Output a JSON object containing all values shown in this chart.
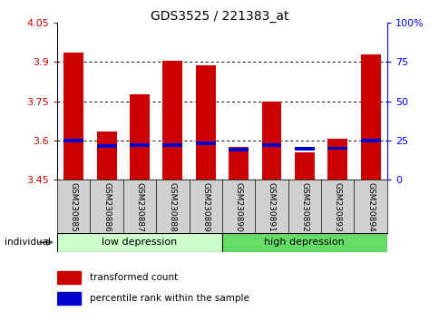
{
  "title": "GDS3525 / 221383_at",
  "categories": [
    "GSM230885",
    "GSM230886",
    "GSM230887",
    "GSM230888",
    "GSM230889",
    "GSM230890",
    "GSM230891",
    "GSM230892",
    "GSM230893",
    "GSM230894"
  ],
  "red_values": [
    3.935,
    3.635,
    3.775,
    3.905,
    3.885,
    3.575,
    3.748,
    3.555,
    3.605,
    3.927
  ],
  "blue_values": [
    3.6,
    3.58,
    3.583,
    3.583,
    3.59,
    3.565,
    3.583,
    3.568,
    3.57,
    3.6
  ],
  "ymin": 3.45,
  "ymax": 4.05,
  "yticks": [
    3.45,
    3.6,
    3.75,
    3.9,
    4.05
  ],
  "ytick_labels": [
    "3.45",
    "3.6",
    "3.75",
    "3.9",
    "4.05"
  ],
  "right_yticks": [
    0,
    25,
    50,
    75,
    100
  ],
  "right_ytick_labels": [
    "0",
    "25",
    "50",
    "75",
    "100%"
  ],
  "group1_label": "low depression",
  "group2_label": "high depression",
  "group1_count": 5,
  "group2_count": 5,
  "legend1": "transformed count",
  "legend2": "percentile rank within the sample",
  "individual_label": "individual",
  "left_color": "#cc0000",
  "blue_color": "#0000cc",
  "group1_color": "#ccffcc",
  "group2_color": "#66dd66",
  "bar_width": 0.6,
  "title_fontsize": 10
}
